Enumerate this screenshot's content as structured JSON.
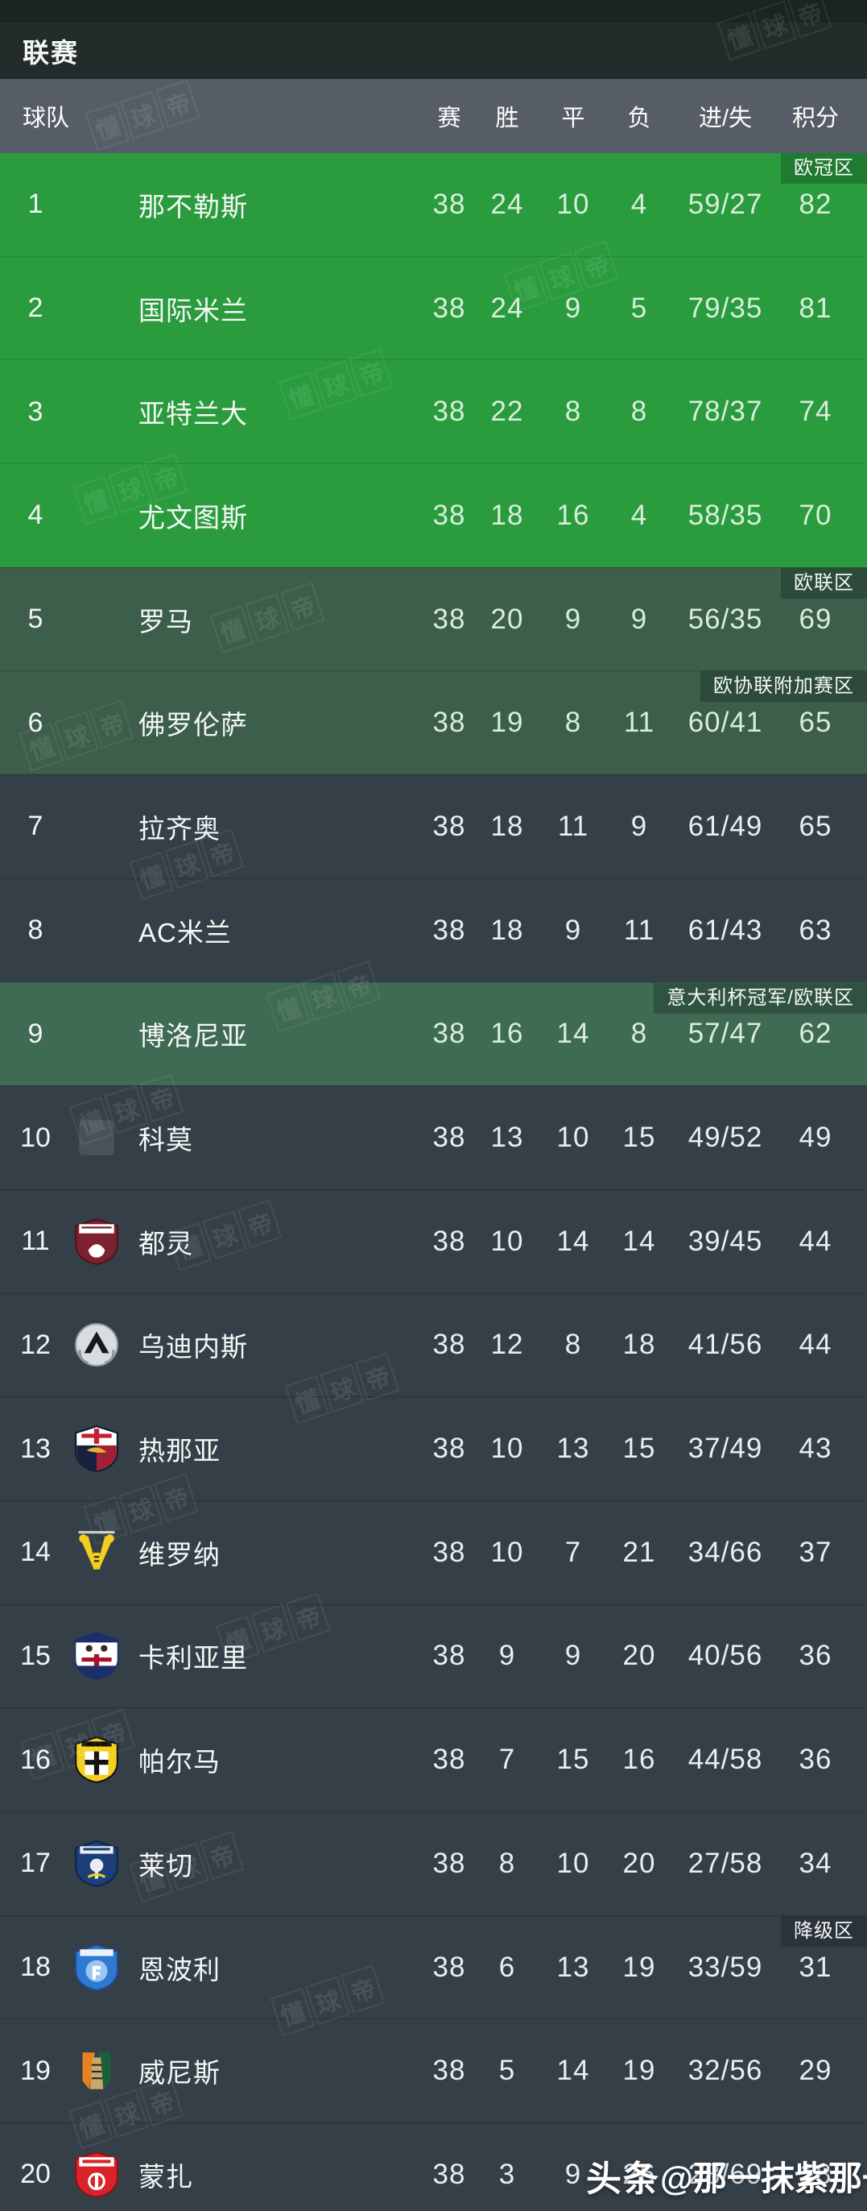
{
  "header": {
    "title": "联赛"
  },
  "columns": {
    "team": "球队",
    "played": "赛",
    "won": "胜",
    "drawn": "平",
    "lost": "负",
    "goals": "进/失",
    "points": "积分"
  },
  "watermark": {
    "diagonal": "懂球帝",
    "credit_prefix": "头条",
    "credit_name": "@那一抹紫那一缕红"
  },
  "colors": {
    "cl_zone_green": "#2a9c3e",
    "cl_badge_green": "#1f7b30",
    "europa_zone_green": "#3c5e4a",
    "europa_badge_green": "#2c4b3a",
    "coppa_zone_green": "#3f6a53",
    "coppa_badge_green": "#2f5340",
    "dark_row": "#343f48",
    "relegation_badge": "#2a323b",
    "header_gray": "#565d66",
    "title_dark": "#222d2b"
  },
  "table": {
    "rows": [
      {
        "rank": "1",
        "team": "那不勒斯",
        "played": "38",
        "won": "24",
        "drawn": "10",
        "lost": "4",
        "goals": "59/27",
        "points": "82",
        "zone": "cl",
        "badge": "欧冠区",
        "logo": null
      },
      {
        "rank": "2",
        "team": "国际米兰",
        "played": "38",
        "won": "24",
        "drawn": "9",
        "lost": "5",
        "goals": "79/35",
        "points": "81",
        "zone": "cl",
        "badge": null,
        "logo": null
      },
      {
        "rank": "3",
        "team": "亚特兰大",
        "played": "38",
        "won": "22",
        "drawn": "8",
        "lost": "8",
        "goals": "78/37",
        "points": "74",
        "zone": "cl",
        "badge": null,
        "logo": null
      },
      {
        "rank": "4",
        "team": "尤文图斯",
        "played": "38",
        "won": "18",
        "drawn": "16",
        "lost": "4",
        "goals": "58/35",
        "points": "70",
        "zone": "cl",
        "badge": null,
        "logo": null
      },
      {
        "rank": "5",
        "team": "罗马",
        "played": "38",
        "won": "20",
        "drawn": "9",
        "lost": "9",
        "goals": "56/35",
        "points": "69",
        "zone": "el",
        "badge": "欧联区",
        "logo": null
      },
      {
        "rank": "6",
        "team": "佛罗伦萨",
        "played": "38",
        "won": "19",
        "drawn": "8",
        "lost": "11",
        "goals": "60/41",
        "points": "65",
        "zone": "conf",
        "badge": "欧协联附加赛区",
        "logo": null
      },
      {
        "rank": "7",
        "team": "拉齐奥",
        "played": "38",
        "won": "18",
        "drawn": "11",
        "lost": "9",
        "goals": "61/49",
        "points": "65",
        "zone": "none",
        "badge": null,
        "logo": null
      },
      {
        "rank": "8",
        "team": "AC米兰",
        "played": "38",
        "won": "18",
        "drawn": "9",
        "lost": "11",
        "goals": "61/43",
        "points": "63",
        "zone": "none",
        "badge": null,
        "logo": null
      },
      {
        "rank": "9",
        "team": "博洛尼亚",
        "played": "38",
        "won": "16",
        "drawn": "14",
        "lost": "8",
        "goals": "57/47",
        "points": "62",
        "zone": "coppa",
        "badge": "意大利杯冠军/欧联区",
        "logo": null
      },
      {
        "rank": "10",
        "team": "科莫",
        "played": "38",
        "won": "13",
        "drawn": "10",
        "lost": "15",
        "goals": "49/52",
        "points": "49",
        "zone": "none",
        "badge": null,
        "logo": {
          "variant": "placeholder",
          "primary": "#ffffff",
          "secondary": "#ffffff"
        }
      },
      {
        "rank": "11",
        "team": "都灵",
        "played": "38",
        "won": "10",
        "drawn": "14",
        "lost": "14",
        "goals": "39/45",
        "points": "44",
        "zone": "none",
        "badge": null,
        "logo": {
          "variant": "torino",
          "primary": "#7d2030",
          "secondary": "#ffffff"
        }
      },
      {
        "rank": "12",
        "team": "乌迪内斯",
        "played": "38",
        "won": "12",
        "drawn": "8",
        "lost": "18",
        "goals": "41/56",
        "points": "44",
        "zone": "none",
        "badge": null,
        "logo": {
          "variant": "udinese",
          "primary": "#d9dde0",
          "secondary": "#15181c"
        }
      },
      {
        "rank": "13",
        "team": "热那亚",
        "played": "38",
        "won": "10",
        "drawn": "13",
        "lost": "15",
        "goals": "37/49",
        "points": "43",
        "zone": "none",
        "badge": null,
        "logo": {
          "variant": "genoa",
          "primary": "#15223e",
          "secondary": "#a31f34"
        }
      },
      {
        "rank": "14",
        "team": "维罗纳",
        "played": "38",
        "won": "10",
        "drawn": "7",
        "lost": "21",
        "goals": "34/66",
        "points": "37",
        "zone": "none",
        "badge": null,
        "logo": {
          "variant": "verona",
          "primary": "#f3cc1f",
          "secondary": "#14202e"
        }
      },
      {
        "rank": "15",
        "team": "卡利亚里",
        "played": "38",
        "won": "9",
        "drawn": "9",
        "lost": "20",
        "goals": "40/56",
        "points": "36",
        "zone": "none",
        "badge": null,
        "logo": {
          "variant": "cagliari",
          "primary": "#1b2f6b",
          "secondary": "#a8102d"
        }
      },
      {
        "rank": "16",
        "team": "帕尔马",
        "played": "38",
        "won": "7",
        "drawn": "15",
        "lost": "16",
        "goals": "44/58",
        "points": "36",
        "zone": "none",
        "badge": null,
        "logo": {
          "variant": "parma",
          "primary": "#f2d01d",
          "secondary": "#111111"
        }
      },
      {
        "rank": "17",
        "team": "莱切",
        "played": "38",
        "won": "8",
        "drawn": "10",
        "lost": "20",
        "goals": "27/58",
        "points": "34",
        "zone": "none",
        "badge": null,
        "logo": {
          "variant": "lecce",
          "primary": "#1c3f7a",
          "secondary": "#f2d01d"
        }
      },
      {
        "rank": "18",
        "team": "恩波利",
        "played": "38",
        "won": "6",
        "drawn": "13",
        "lost": "19",
        "goals": "33/59",
        "points": "31",
        "zone": "none",
        "badge": "降级区",
        "logo": {
          "variant": "empoli",
          "primary": "#2e7ad1",
          "secondary": "#ffffff"
        }
      },
      {
        "rank": "19",
        "team": "威尼斯",
        "played": "38",
        "won": "5",
        "drawn": "14",
        "lost": "19",
        "goals": "32/56",
        "points": "29",
        "zone": "none",
        "badge": null,
        "logo": {
          "variant": "venezia",
          "primary": "#e8821e",
          "secondary": "#1d5e3c"
        }
      },
      {
        "rank": "20",
        "team": "蒙扎",
        "played": "38",
        "won": "3",
        "drawn": "9",
        "lost": "26",
        "goals": "28/69",
        "points": "18",
        "zone": "none",
        "badge": null,
        "logo": {
          "variant": "monza",
          "primary": "#d8232a",
          "secondary": "#ffffff"
        }
      }
    ]
  }
}
